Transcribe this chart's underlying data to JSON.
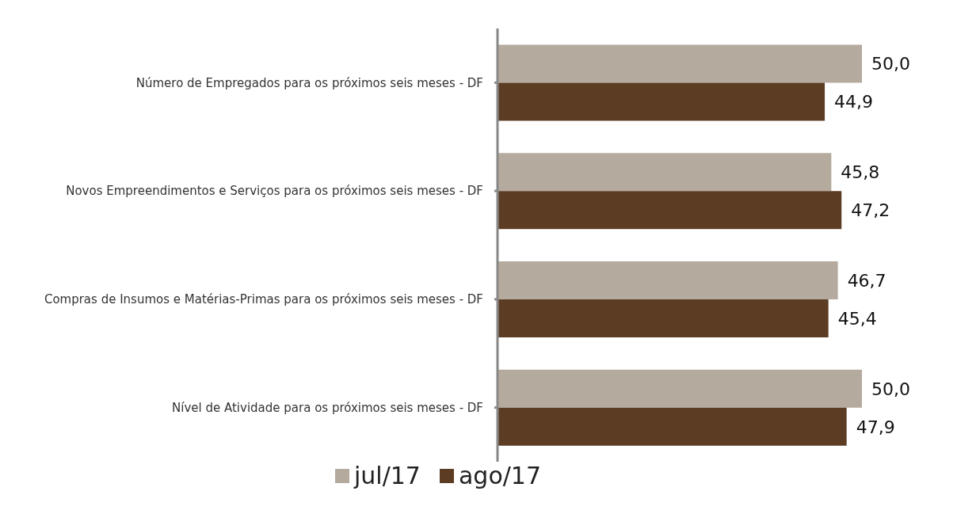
{
  "chart_data": {
    "type": "bar",
    "orientation": "horizontal",
    "categories": [
      "Número de Empregados  para os próximos seis meses - DF",
      "Novos Empreendimentos e Serviços para os próximos seis meses - DF",
      "Compras de Insumos e Matérias-Primas  para os próximos seis meses - DF",
      "Nível de Atividade para os próximos seis meses - DF"
    ],
    "series": [
      {
        "name": "jul/17",
        "color": "#b5aa9e",
        "values": [
          50.0,
          45.8,
          46.7,
          50.0
        ],
        "value_labels": [
          "50,0",
          "45,8",
          "46,7",
          "50,0"
        ]
      },
      {
        "name": "ago/17",
        "color": "#5c3d24",
        "values": [
          44.9,
          47.2,
          45.4,
          47.9
        ],
        "value_labels": [
          "44,9",
          "47,2",
          "45,4",
          "47,9"
        ]
      }
    ],
    "tick_labels": "y",
    "legend": "bottom",
    "grid": false
  }
}
